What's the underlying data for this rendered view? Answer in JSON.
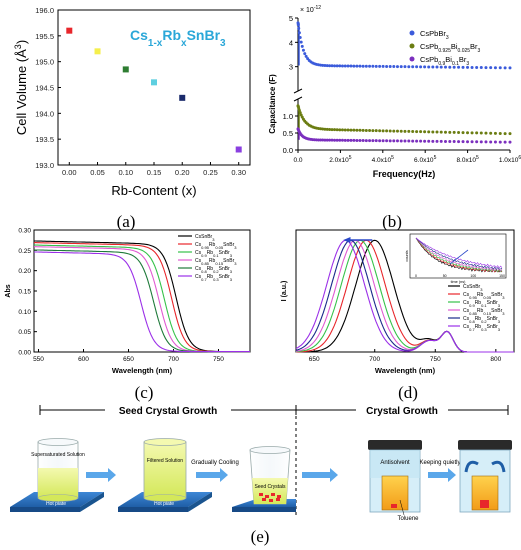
{
  "panel_labels": {
    "a": "(a)",
    "b": "(b)",
    "c": "(c)",
    "d": "(d)",
    "e": "(e)"
  },
  "chart_data": [
    {
      "id": "a",
      "type": "scatter",
      "title": "Cs1-xRbxSnBr3",
      "title_parts": {
        "base": "Cs",
        "s1": "1-x",
        "mid": "Rb",
        "s2": "x",
        "end": "SnBr",
        "s3": "3"
      },
      "xlabel": "Rb-Content (x)",
      "ylabel": "Cell Volume (Å³)",
      "ylabel_parts": {
        "base": "Cell Volume (Å",
        "sup": "3",
        "end": ")"
      },
      "xlim": [
        -0.02,
        0.32
      ],
      "ylim": [
        193.0,
        196.0
      ],
      "xticks": [
        "0.00",
        "0.05",
        "0.10",
        "0.15",
        "0.20",
        "0.25",
        "0.30"
      ],
      "yticks": [
        "193.0",
        "193.5",
        "194.0",
        "194.5",
        "195.0",
        "195.5",
        "196.0"
      ],
      "points": [
        {
          "x": 0.0,
          "y": 195.6,
          "color": "#e8262b"
        },
        {
          "x": 0.05,
          "y": 195.2,
          "color": "#f5ef4c"
        },
        {
          "x": 0.1,
          "y": 194.85,
          "color": "#2e7d32"
        },
        {
          "x": 0.15,
          "y": 194.6,
          "color": "#5ecfe0"
        },
        {
          "x": 0.2,
          "y": 194.3,
          "color": "#1a2a6b"
        },
        {
          "x": 0.3,
          "y": 193.3,
          "color": "#8a3fe0"
        }
      ],
      "title_color": "#2aa7d8"
    },
    {
      "id": "b",
      "type": "scatter",
      "xlabel": "Frequency(Hz)",
      "ylabel": "Capacitance (F)",
      "y_multiplier": {
        "base": "× 10",
        "sup": "-12"
      },
      "xlim": [
        0,
        1000000
      ],
      "ylim_upper": [
        2,
        5
      ],
      "ylim_lower": [
        0,
        1.5
      ],
      "xticks": [
        {
          "v": 0,
          "t": "0.0"
        },
        {
          "v": 200000,
          "t": "2.0x10",
          "sup": "5"
        },
        {
          "v": 400000,
          "t": "4.0x10",
          "sup": "5"
        },
        {
          "v": 600000,
          "t": "6.0x10",
          "sup": "5"
        },
        {
          "v": 800000,
          "t": "8.0x10",
          "sup": "5"
        },
        {
          "v": 1000000,
          "t": "1.0x10",
          "sup": "6"
        }
      ],
      "yticks_upper": [
        "3",
        "4",
        "5"
      ],
      "yticks_lower": [
        "0.0",
        "0.5",
        "1.0"
      ],
      "series": [
        {
          "name": "CsPbBr3",
          "legend": {
            "base": "CsPbBr",
            "s1": "3"
          },
          "color": "#3b5bdb",
          "start": 4.8,
          "plateau": 3.05,
          "end": 2.95,
          "decay": 25000
        },
        {
          "name": "CsPb0.925Bi0.025Br3",
          "legend": {
            "base": "CsPb",
            "s1": "0.925",
            "mid": "Bi",
            "s2": "0.025",
            "end": "Br",
            "s3": "3"
          },
          "color": "#6b7d12",
          "start": 1.3,
          "plateau": 0.62,
          "end": 0.48,
          "decay": 30000
        },
        {
          "name": "CsPb0.9Bi0.1Br3",
          "legend": {
            "base": "CsPb",
            "s1": "0.9",
            "mid": "Bi",
            "s2": "0.1",
            "end": "Br",
            "s3": "3"
          },
          "color": "#7b2fbe",
          "start": 0.62,
          "plateau": 0.3,
          "end": 0.23,
          "decay": 20000
        }
      ]
    },
    {
      "id": "c",
      "type": "line",
      "xlabel": "Wavelength (nm)",
      "ylabel": "Abs",
      "xlim": [
        545,
        785
      ],
      "ylim": [
        0,
        0.3
      ],
      "xticks": [
        "550",
        "600",
        "650",
        "700",
        "750"
      ],
      "yticks": [
        "0.00",
        "0.05",
        "0.10",
        "0.15",
        "0.20",
        "0.25",
        "0.30"
      ],
      "series": [
        {
          "name": "CsSnBr3",
          "legend": {
            "base": "CsSnBr",
            "s1": "3"
          },
          "color": "#000000",
          "top": 0.272,
          "edge": 703,
          "width": 7
        },
        {
          "name": "Cs0.95Rb0.05SnBr3",
          "legend": {
            "base": "Cs",
            "s1": "0.95",
            "mid": "Rb",
            "s2": "0.05",
            "end": "SnBr",
            "s3": "3"
          },
          "color": "#e8262b",
          "top": 0.268,
          "edge": 698,
          "width": 7
        },
        {
          "name": "Cs0.9Rb0.1SnBr3",
          "legend": {
            "base": "Cs",
            "s1": "0.9",
            "mid": "Rb",
            "s2": "0.1",
            "end": "SnBr",
            "s3": "3"
          },
          "color": "#36c24a",
          "top": 0.262,
          "edge": 690,
          "width": 7
        },
        {
          "name": "Cs0.85Rb0.15SnBr3",
          "legend": {
            "base": "Cs",
            "s1": "0.85",
            "mid": "Rb",
            "s2": "0.15",
            "end": "SnBr",
            "s3": "3"
          },
          "color": "#e05bd2",
          "top": 0.258,
          "edge": 684,
          "width": 7
        },
        {
          "name": "Cs0.8Rb0.2SnBr3",
          "legend": {
            "base": "Cs",
            "s1": "0.8",
            "mid": "Rb",
            "s2": "0.2",
            "end": "SnBr",
            "s3": "3"
          },
          "color": "#1f7a3a",
          "top": 0.25,
          "edge": 678,
          "width": 7
        },
        {
          "name": "Cs0.7Rb0.3SnBr3",
          "legend": {
            "base": "Cs",
            "s1": "0.7",
            "mid": "Rb",
            "s2": "0.3",
            "end": "SnBr",
            "s3": "3"
          },
          "color": "#9b30e8",
          "top": 0.245,
          "edge": 664,
          "width": 7
        }
      ]
    },
    {
      "id": "d",
      "type": "line",
      "xlabel": "Wavelength (nm)",
      "ylabel": "I (a.u.)",
      "xlim": [
        635,
        815
      ],
      "xticks": [
        "650",
        "700",
        "750",
        "800"
      ],
      "series": [
        {
          "name": "CsSnBr3",
          "legend": {
            "base": "CsSnBr",
            "s1": "3"
          },
          "color": "#000000",
          "peak": 700
        },
        {
          "name": "Cs0.95Rb0.05SnBr3",
          "legend": {
            "base": "Cs",
            "s1": "0.95",
            "mid": "Rb",
            "s2": "0.05",
            "end": "SnBr",
            "s3": "3"
          },
          "color": "#e8262b",
          "peak": 693
        },
        {
          "name": "Cs0.9Rb0.1SnBr3",
          "legend": {
            "base": "Cs",
            "s1": "0.9",
            "mid": "Rb",
            "s2": "0.1",
            "end": "SnBr",
            "s3": "3"
          },
          "color": "#36c24a",
          "peak": 688
        },
        {
          "name": "Cs0.85Rb0.15SnBr3",
          "legend": {
            "base": "Cs",
            "s1": "0.85",
            "mid": "Rb",
            "s2": "0.15",
            "end": "SnBr",
            "s3": "3"
          },
          "color": "#e05bd2",
          "peak": 684
        },
        {
          "name": "Cs0.8Rb0.2SnBr3",
          "legend": {
            "base": "Cs",
            "s1": "0.8",
            "mid": "Rb",
            "s2": "0.2",
            "end": "SnBr",
            "s3": "3"
          },
          "color": "#1a2a8b",
          "peak": 680
        },
        {
          "name": "Cs0.7Rb0.3SnBr3",
          "legend": {
            "base": "Cs",
            "s1": "0.7",
            "mid": "Rb",
            "s2": "0.3",
            "end": "SnBr",
            "s3": "3"
          },
          "color": "#9b30e8",
          "peak": 676
        }
      ],
      "inset": {
        "xlabel": "time (ns)",
        "ylabel": "counts",
        "xticks": [
          "0",
          "50",
          "100",
          "150"
        ]
      }
    }
  ],
  "flow": {
    "seed_header": "Seed Crystal Growth",
    "crystal_header": "Crystal Growth",
    "beaker1_label": "Supersaturated Solution",
    "hotplate1": "Hot plate",
    "beaker2_label": "Filtered Solution",
    "hotplate2": "Hot plate",
    "step_cooling": "Gradually Cooling",
    "beaker3_label": "Seed Crystals",
    "antisolvent": "Antisolvent",
    "toluene": "Toluene",
    "keeping": "Keeping quietly"
  }
}
